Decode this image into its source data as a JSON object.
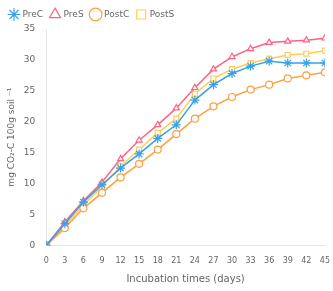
{
  "chart_data": {
    "type": "line",
    "x_label": "Incubation times (days)",
    "y_label": "mg CO₂-C 100g soil ⁻¹",
    "x": [
      0,
      3,
      6,
      9,
      12,
      15,
      18,
      21,
      24,
      27,
      30,
      33,
      36,
      39,
      42,
      45
    ],
    "series": [
      {
        "name": "PreC",
        "marker": "star",
        "values": [
          0,
          3.5,
          7.0,
          9.8,
          12.5,
          14.8,
          17.3,
          19.5,
          23.5,
          26.0,
          27.8,
          29.0,
          29.8,
          29.5,
          29.5,
          29.5
        ]
      },
      {
        "name": "PreS",
        "marker": "triangle",
        "values": [
          0,
          3.8,
          7.2,
          10.2,
          14.0,
          17.0,
          19.5,
          22.2,
          25.5,
          28.5,
          30.5,
          31.8,
          32.8,
          33.0,
          33.2,
          33.5
        ]
      },
      {
        "name": "PostC",
        "marker": "circle",
        "values": [
          0,
          2.8,
          6.0,
          8.5,
          11.0,
          13.2,
          15.5,
          18.0,
          20.5,
          22.5,
          24.0,
          25.2,
          26.0,
          27.0,
          27.5,
          28.0
        ]
      },
      {
        "name": "PostS",
        "marker": "square",
        "values": [
          0,
          3.2,
          6.5,
          9.5,
          12.8,
          15.5,
          18.2,
          20.5,
          24.5,
          27.0,
          28.5,
          29.5,
          30.2,
          30.8,
          31.0,
          31.5
        ]
      }
    ],
    "xlim": [
      0,
      45
    ],
    "ylim": [
      0,
      35
    ],
    "xticks": [
      0,
      3,
      6,
      9,
      12,
      15,
      18,
      21,
      24,
      27,
      30,
      33,
      36,
      39,
      42,
      45
    ],
    "yticks": [
      0,
      5,
      10,
      15,
      20,
      25,
      30,
      35
    ],
    "grid": false,
    "legend": "upper left"
  }
}
